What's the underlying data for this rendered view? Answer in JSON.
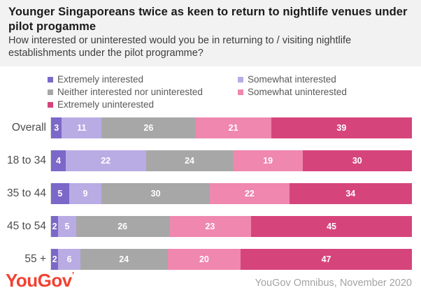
{
  "header": {
    "title": "Younger Singaporeans twice as keen to return to nightlife venues under pilot progamme",
    "subtitle": "How interested or uninterested would you be in returning to / visiting nightlife establishments under the pilot programme?"
  },
  "colors": {
    "extremely_interested": "#7C68C8",
    "somewhat_interested": "#B9ABE4",
    "neither": "#A8A7A8",
    "somewhat_uninterested": "#EF87AE",
    "extremely_uninterested": "#D6447C",
    "header_background": "#f2f2f2",
    "logo": "#f44032"
  },
  "chart_data": {
    "type": "bar",
    "orientation": "horizontal-stacked",
    "title": "Younger Singaporeans twice as keen to return to nightlife venues under pilot progamme",
    "categories": [
      "Overall",
      "18 to 34",
      "35 to 44",
      "45 to 54",
      "55 +"
    ],
    "series": [
      {
        "name": "Extremely interested",
        "color": "#7C68C8",
        "values": [
          3,
          4,
          5,
          2,
          2
        ]
      },
      {
        "name": "Somewhat interested",
        "color": "#B9ABE4",
        "values": [
          11,
          22,
          9,
          5,
          6
        ]
      },
      {
        "name": "Neither interested nor uninterested",
        "color": "#A8A7A8",
        "values": [
          26,
          24,
          30,
          26,
          24
        ]
      },
      {
        "name": "Somewhat uninterested",
        "color": "#EF87AE",
        "values": [
          21,
          19,
          22,
          23,
          20
        ]
      },
      {
        "name": "Extremely uninterested",
        "color": "#D6447C",
        "values": [
          39,
          30,
          34,
          45,
          47
        ]
      }
    ],
    "xlim": [
      0,
      100
    ],
    "value_labels": true,
    "legend_position": "top",
    "units": "percent"
  },
  "footer": {
    "logo_text": "YouGov",
    "logo_tick": "’",
    "source": "YouGov Omnibus, November 2020"
  }
}
